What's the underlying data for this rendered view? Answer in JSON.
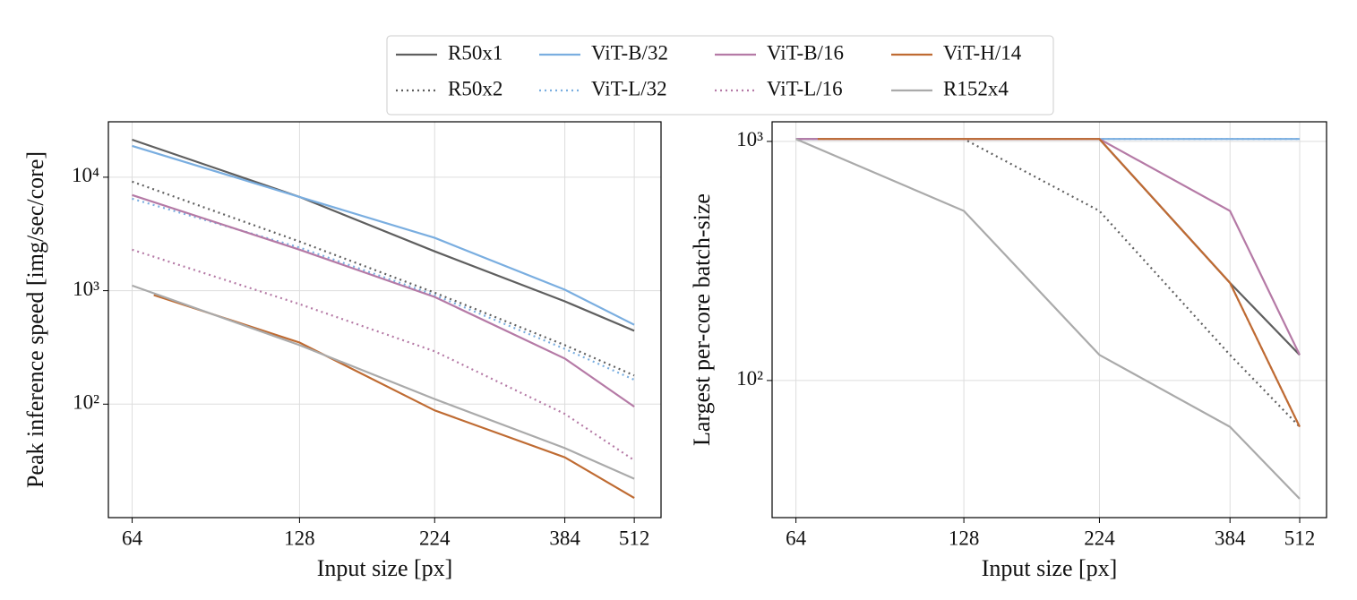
{
  "chart_data": [
    {
      "type": "line",
      "x_label": "Input size [px]",
      "y_label": "Peak inference speed [img/sec/core]",
      "xscale": "log",
      "yscale": "log",
      "grid": true,
      "legend": "top",
      "x": [
        64,
        128,
        224,
        384,
        512
      ],
      "xlim": [
        58,
        572
      ],
      "ylim": [
        10,
        30800
      ],
      "xticks": [
        64,
        128,
        224,
        384,
        512
      ],
      "yticks": [
        {
          "value": 100,
          "label": "10²"
        },
        {
          "value": 1000,
          "label": "10³"
        },
        {
          "value": 10000,
          "label": "10⁴"
        }
      ],
      "series": [
        {
          "name": "R50x1",
          "color": "#5f5f5f",
          "style": "solid",
          "values": [
            21400,
            6700,
            2220,
            805,
            443
          ]
        },
        {
          "name": "R50x2",
          "color": "#5f5f5f",
          "style": "dotted",
          "values": [
            9140,
            2710,
            960,
            331,
            179
          ]
        },
        {
          "name": "ViT-B/32",
          "color": "#7aaee0",
          "style": "solid",
          "values": [
            18900,
            6700,
            2920,
            1020,
            500
          ]
        },
        {
          "name": "ViT-L/32",
          "color": "#7aaee0",
          "style": "dotted",
          "values": [
            6470,
            2400,
            915,
            307,
            164
          ]
        },
        {
          "name": "ViT-B/16",
          "color": "#b57aa6",
          "style": "solid",
          "values": [
            6970,
            2300,
            880,
            252,
            95
          ]
        },
        {
          "name": "ViT-L/16",
          "color": "#b57aa6",
          "style": "dotted",
          "values": [
            2300,
            762,
            292,
            82,
            32
          ]
        },
        {
          "name": "ViT-H/14",
          "color": "#bf6b32",
          "style": "solid",
          "x": [
            70,
            128,
            224,
            384,
            512
          ],
          "values": [
            914,
            349,
            88,
            34,
            14.9
          ]
        },
        {
          "name": "R152x4",
          "color": "#aaaaaa",
          "style": "solid",
          "values": [
            1110,
            331,
            111,
            41,
            22
          ]
        }
      ]
    },
    {
      "type": "line",
      "x_label": "Input size [px]",
      "y_label": "Largest per-core batch-size",
      "xscale": "log",
      "yscale": "log",
      "grid": true,
      "x": [
        64,
        128,
        224,
        384,
        512
      ],
      "xlim": [
        58,
        572
      ],
      "ylim": [
        26.7,
        1208
      ],
      "xticks": [
        64,
        128,
        224,
        384,
        512
      ],
      "yticks": [
        {
          "value": 100,
          "label": "10²"
        },
        {
          "value": 1000,
          "label": "10³"
        }
      ],
      "series": [
        {
          "color": "#5f5f5f",
          "style": "solid",
          "values": [
            1024,
            1024,
            1024,
            256,
            128
          ]
        },
        {
          "color": "#5f5f5f",
          "style": "dotted",
          "values": [
            1024,
            1024,
            512,
            128,
            64
          ]
        },
        {
          "color": "#7aaee0",
          "style": "solid",
          "values": [
            1024,
            1024,
            1024,
            1024,
            1024
          ]
        },
        {
          "color": "#7aaee0",
          "style": "dotted",
          "values": [
            1024,
            1024,
            1024,
            1024,
            1024
          ]
        },
        {
          "color": "#b57aa6",
          "style": "solid",
          "values": [
            1024,
            1024,
            1024,
            512,
            128
          ]
        },
        {
          "color": "#b57aa6",
          "style": "dotted",
          "values": [
            1024,
            1024,
            1024,
            256,
            64
          ]
        },
        {
          "color": "#bf6b32",
          "style": "solid",
          "x": [
            70,
            128,
            224,
            384,
            512
          ],
          "values": [
            1024,
            1024,
            1024,
            256,
            64
          ]
        },
        {
          "color": "#aaaaaa",
          "style": "solid",
          "values": [
            1024,
            512,
            128,
            64,
            32
          ]
        }
      ]
    }
  ]
}
